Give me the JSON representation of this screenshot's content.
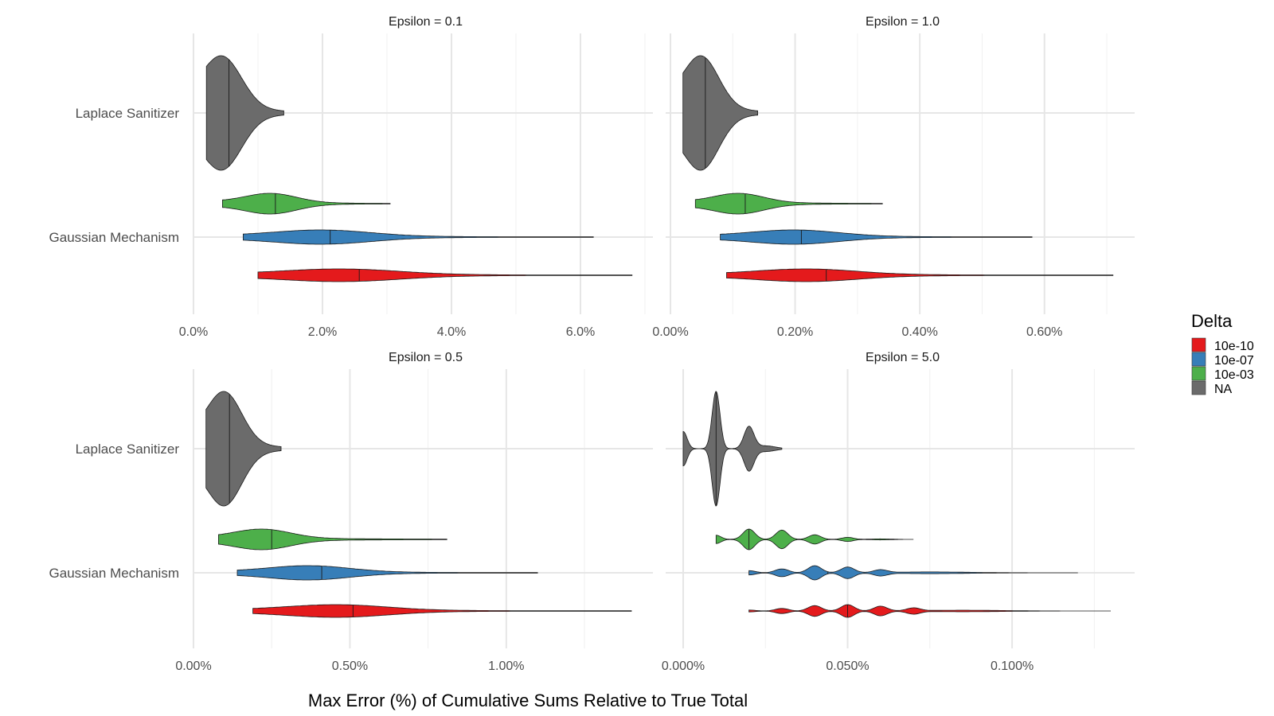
{
  "chart_data": {
    "type": "violin",
    "xlabel": "Max Error (%) of Cumulative Sums Relative to True Total",
    "categories": [
      "Laplace Sanitizer",
      "Gaussian Mechanism"
    ],
    "legend": {
      "title": "Delta",
      "placement": "right",
      "items": [
        {
          "label": "10e-10",
          "color": "#E41A1C"
        },
        {
          "label": "10e-07",
          "color": "#377EB8"
        },
        {
          "label": "10e-03",
          "color": "#4DAF4A"
        },
        {
          "label": "NA",
          "color": "#6B6B6B"
        }
      ]
    },
    "panels": [
      {
        "strip": "Epsilon = 0.1",
        "xlim": [
          0,
          7.0
        ],
        "xticks": [
          {
            "v": 0,
            "label": "0.0%"
          },
          {
            "v": 2,
            "label": "2.0%"
          },
          {
            "v": 4,
            "label": "4.0%"
          },
          {
            "v": 6,
            "label": "6.0%"
          }
        ],
        "minor": [
          1,
          3,
          5,
          7
        ],
        "violins": [
          {
            "category": "Laplace Sanitizer",
            "delta": "NA",
            "min": 0.2,
            "max": 1.4,
            "median": 0.55,
            "mode": 0.45,
            "spread": 0.3
          },
          {
            "category": "Gaussian Mechanism",
            "delta": "10e-03",
            "min": 0.45,
            "max": 3.05,
            "median": 1.27,
            "mode": 1.2,
            "spread": 0.4
          },
          {
            "category": "Gaussian Mechanism",
            "delta": "10e-07",
            "min": 0.77,
            "max": 6.2,
            "median": 2.12,
            "mode": 2.0,
            "spread": 0.75
          },
          {
            "category": "Gaussian Mechanism",
            "delta": "10e-10",
            "min": 1.0,
            "max": 6.8,
            "median": 2.57,
            "mode": 2.3,
            "spread": 0.9
          }
        ]
      },
      {
        "strip": "Epsilon = 1.0",
        "xlim": [
          0,
          0.7
        ],
        "xticks": [
          {
            "v": 0,
            "label": "0.00%"
          },
          {
            "v": 0.2,
            "label": "0.20%"
          },
          {
            "v": 0.4,
            "label": "0.40%"
          },
          {
            "v": 0.6,
            "label": "0.60%"
          }
        ],
        "minor": [
          0.1,
          0.3,
          0.5,
          0.7
        ],
        "violins": [
          {
            "category": "Laplace Sanitizer",
            "delta": "NA",
            "min": 0.02,
            "max": 0.14,
            "median": 0.056,
            "mode": 0.05,
            "spread": 0.028
          },
          {
            "category": "Gaussian Mechanism",
            "delta": "10e-03",
            "min": 0.04,
            "max": 0.34,
            "median": 0.12,
            "mode": 0.11,
            "spread": 0.04
          },
          {
            "category": "Gaussian Mechanism",
            "delta": "10e-07",
            "min": 0.08,
            "max": 0.58,
            "median": 0.21,
            "mode": 0.2,
            "spread": 0.07
          },
          {
            "category": "Gaussian Mechanism",
            "delta": "10e-10",
            "min": 0.09,
            "max": 0.71,
            "median": 0.25,
            "mode": 0.22,
            "spread": 0.08
          }
        ]
      },
      {
        "strip": "Epsilon = 0.5",
        "xlim": [
          0,
          1.4
        ],
        "xticks": [
          {
            "v": 0,
            "label": "0.00%"
          },
          {
            "v": 0.5,
            "label": "0.50%"
          },
          {
            "v": 1.0,
            "label": "1.00%"
          }
        ],
        "minor": [
          0.25,
          0.75,
          1.25
        ],
        "violins": [
          {
            "category": "Laplace Sanitizer",
            "delta": "NA",
            "min": 0.04,
            "max": 0.28,
            "median": 0.115,
            "mode": 0.1,
            "spread": 0.055
          },
          {
            "category": "Gaussian Mechanism",
            "delta": "10e-03",
            "min": 0.08,
            "max": 0.81,
            "median": 0.25,
            "mode": 0.22,
            "spread": 0.09
          },
          {
            "category": "Gaussian Mechanism",
            "delta": "10e-07",
            "min": 0.14,
            "max": 1.1,
            "median": 0.41,
            "mode": 0.37,
            "spread": 0.13
          },
          {
            "category": "Gaussian Mechanism",
            "delta": "10e-10",
            "min": 0.19,
            "max": 1.4,
            "median": 0.51,
            "mode": 0.46,
            "spread": 0.16
          }
        ]
      },
      {
        "strip": "Epsilon = 5.0",
        "xlim": [
          0,
          0.13
        ],
        "xticks": [
          {
            "v": 0,
            "label": "0.000%"
          },
          {
            "v": 0.05,
            "label": "0.050%"
          },
          {
            "v": 0.1,
            "label": "0.100%"
          }
        ],
        "minor": [
          0.025,
          0.075,
          0.125
        ],
        "violins": [
          {
            "category": "Laplace Sanitizer",
            "delta": "NA",
            "min": 0.0,
            "max": 0.03,
            "median": 0.01,
            "peaks": [
              [
                0.0,
                0.0012,
                0.3
              ],
              [
                0.01,
                0.0012,
                1.0
              ],
              [
                0.02,
                0.0015,
                0.38
              ],
              [
                0.025,
                0.003,
                0.05
              ]
            ]
          },
          {
            "category": "Gaussian Mechanism",
            "delta": "10e-03",
            "min": 0.01,
            "max": 0.07,
            "median": 0.02,
            "peaks": [
              [
                0.01,
                0.0015,
                0.4
              ],
              [
                0.02,
                0.0018,
                1.0
              ],
              [
                0.03,
                0.0018,
                0.9
              ],
              [
                0.04,
                0.0018,
                0.45
              ],
              [
                0.05,
                0.0018,
                0.2
              ],
              [
                0.06,
                0.003,
                0.05
              ]
            ]
          },
          {
            "category": "Gaussian Mechanism",
            "delta": "10e-07",
            "min": 0.02,
            "max": 0.12,
            "median": 0.044,
            "peaks": [
              [
                0.03,
                0.002,
                0.55
              ],
              [
                0.04,
                0.002,
                1.0
              ],
              [
                0.05,
                0.002,
                0.8
              ],
              [
                0.06,
                0.002,
                0.4
              ],
              [
                0.075,
                0.012,
                0.12
              ],
              [
                0.02,
                0.002,
                0.3
              ]
            ]
          },
          {
            "category": "Gaussian Mechanism",
            "delta": "10e-10",
            "min": 0.02,
            "max": 0.13,
            "median": 0.05,
            "peaks": [
              [
                0.03,
                0.002,
                0.4
              ],
              [
                0.04,
                0.002,
                0.85
              ],
              [
                0.05,
                0.002,
                1.0
              ],
              [
                0.06,
                0.002,
                0.75
              ],
              [
                0.07,
                0.002,
                0.45
              ],
              [
                0.085,
                0.012,
                0.12
              ],
              [
                0.02,
                0.002,
                0.15
              ]
            ]
          }
        ]
      }
    ]
  }
}
